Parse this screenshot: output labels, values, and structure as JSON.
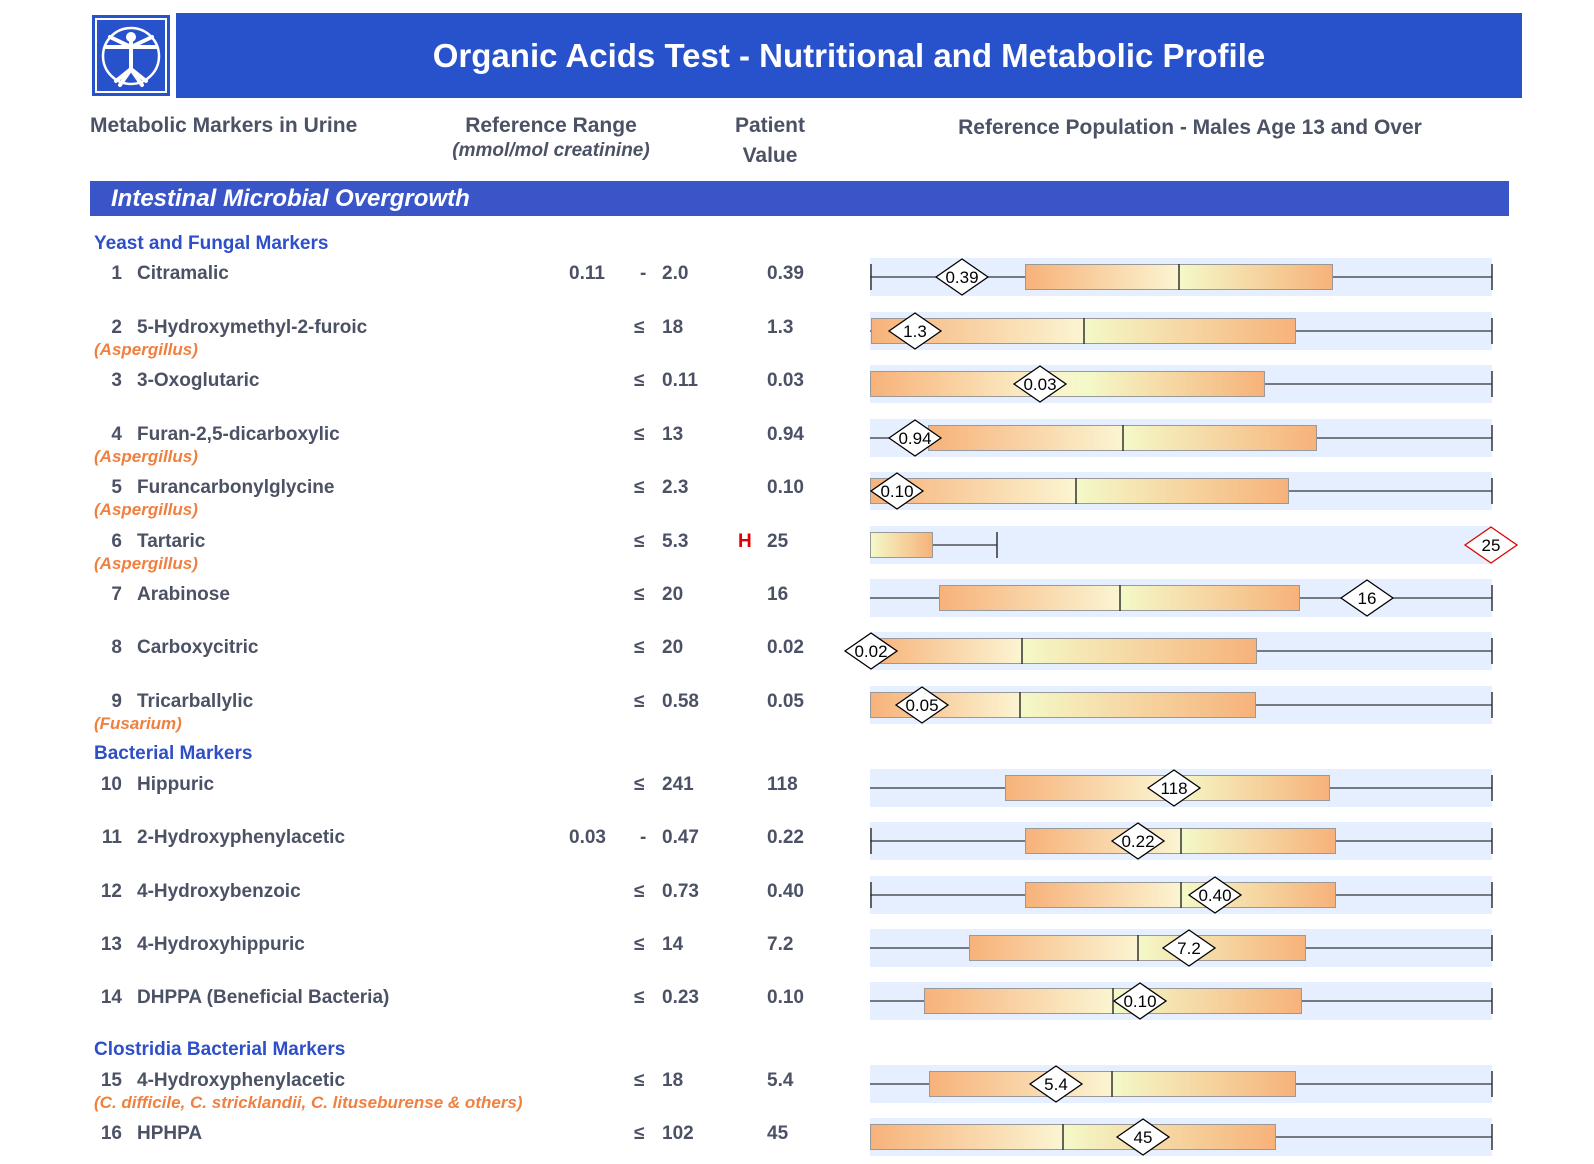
{
  "header": {
    "title": "Organic Acids Test - Nutritional and Metabolic Profile",
    "logo": "vitruvian-man-logo",
    "color": "#2851cc"
  },
  "columns": {
    "markers": "Metabolic Markers in Urine",
    "range": "Reference Range",
    "range_unit": "(mmol/mol creatinine)",
    "patient_1": "Patient",
    "patient_2": "Value",
    "population": "Reference Population - Males Age 13 and Over"
  },
  "section": "Intestinal Microbial Overgrowth",
  "groups": [
    {
      "label": "Yeast and Fungal Markers"
    },
    {
      "label": "Bacterial Markers"
    },
    {
      "label": "Clostridia Bacterial Markers"
    }
  ],
  "rows": [
    {
      "num": "1",
      "name": "Citramalic",
      "organism": "",
      "low": "0.11",
      "sep": "-",
      "high": "2.0",
      "flag": "",
      "value": "0.39"
    },
    {
      "num": "2",
      "name": "5-Hydroxymethyl-2-furoic",
      "organism": "(Aspergillus)",
      "low": "",
      "sep": "≤",
      "high": "18",
      "flag": "",
      "value": "1.3"
    },
    {
      "num": "3",
      "name": "3-Oxoglutaric",
      "organism": "",
      "low": "",
      "sep": "≤",
      "high": "0.11",
      "flag": "",
      "value": "0.03"
    },
    {
      "num": "4",
      "name": "Furan-2,5-dicarboxylic",
      "organism": "(Aspergillus)",
      "low": "",
      "sep": "≤",
      "high": "13",
      "flag": "",
      "value": "0.94"
    },
    {
      "num": "5",
      "name": "Furancarbonylglycine",
      "organism": "(Aspergillus)",
      "low": "",
      "sep": "≤",
      "high": "2.3",
      "flag": "",
      "value": "0.10"
    },
    {
      "num": "6",
      "name": "Tartaric",
      "organism": "(Aspergillus)",
      "low": "",
      "sep": "≤",
      "high": "5.3",
      "flag": "H",
      "value": "25"
    },
    {
      "num": "7",
      "name": "Arabinose",
      "organism": "",
      "low": "",
      "sep": "≤",
      "high": "20",
      "flag": "",
      "value": "16"
    },
    {
      "num": "8",
      "name": "Carboxycitric",
      "organism": "",
      "low": "",
      "sep": "≤",
      "high": "20",
      "flag": "",
      "value": "0.02"
    },
    {
      "num": "9",
      "name": "Tricarballylic",
      "organism": "(Fusarium)",
      "low": "",
      "sep": "≤",
      "high": "0.58",
      "flag": "",
      "value": "0.05"
    },
    {
      "num": "10",
      "name": "Hippuric",
      "organism": "",
      "low": "",
      "sep": "≤",
      "high": "241",
      "flag": "",
      "value": "118"
    },
    {
      "num": "11",
      "name": "2-Hydroxyphenylacetic",
      "organism": "",
      "low": "0.03",
      "sep": "-",
      "high": "0.47",
      "flag": "",
      "value": "0.22"
    },
    {
      "num": "12",
      "name": "4-Hydroxybenzoic",
      "organism": "",
      "low": "",
      "sep": "≤",
      "high": "0.73",
      "flag": "",
      "value": "0.40"
    },
    {
      "num": "13",
      "name": "4-Hydroxyhippuric",
      "organism": "",
      "low": "",
      "sep": "≤",
      "high": "14",
      "flag": "",
      "value": "7.2"
    },
    {
      "num": "14",
      "name": "DHPPA (Beneficial Bacteria)",
      "organism": "",
      "low": "",
      "sep": "≤",
      "high": "0.23",
      "flag": "",
      "value": "0.10"
    },
    {
      "num": "15",
      "name": "4-Hydroxyphenylacetic",
      "organism": "(C. difficile, C. stricklandii, C. lituseburense & others)",
      "low": "",
      "sep": "≤",
      "high": "18",
      "flag": "",
      "value": "5.4"
    },
    {
      "num": "16",
      "name": "HPHPA",
      "organism": "",
      "low": "",
      "sep": "≤",
      "high": "102",
      "flag": "",
      "value": "45"
    }
  ],
  "colors": {
    "band": "#e6efff",
    "box_end": "#f7b27a",
    "box_mid": "#f4f9c8",
    "high_marker": "#e00000",
    "subheader": "#2f4fc8",
    "organism": "#f08040"
  }
}
